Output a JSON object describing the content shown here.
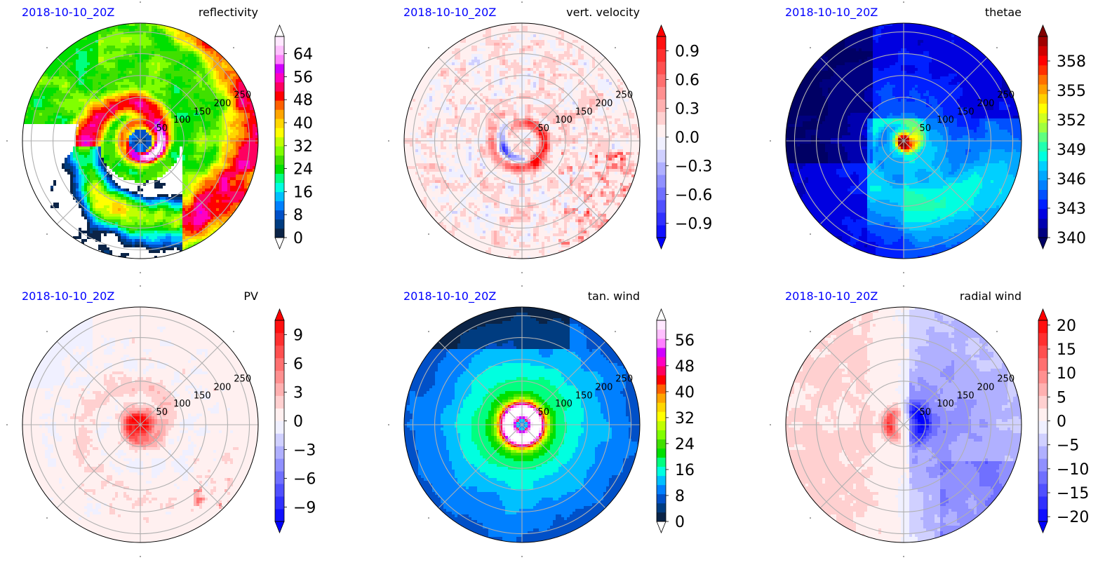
{
  "figure": {
    "timestamp_color": "#0000ff",
    "ring_label_color": "#000000",
    "grid_color": "#b0b0b0"
  },
  "chart_data": [
    {
      "type": "heatmap",
      "projection": "polar",
      "timestamp": "2018-10-10_20Z",
      "title": "reflectivity",
      "radial_ticks": [
        50,
        100,
        150,
        200,
        250
      ],
      "radial_max": 270,
      "colorbar": {
        "min": 0,
        "max": 70,
        "ticks": [
          "0",
          "8",
          "16",
          "24",
          "32",
          "40",
          "48",
          "56",
          "64"
        ],
        "tick_values": [
          0,
          8,
          16,
          24,
          32,
          40,
          48,
          56,
          64
        ],
        "extend_low": true,
        "extend_high": true,
        "low_color": "#ffffff",
        "high_color": "#ffffff",
        "colors": [
          "#0b2447",
          "#003c80",
          "#0050c8",
          "#0080ff",
          "#00c0ff",
          "#00ffe0",
          "#00ff80",
          "#00e000",
          "#40e000",
          "#80ff00",
          "#c0ff00",
          "#ffff00",
          "#ffd700",
          "#ffa500",
          "#ff6000",
          "#ff0000",
          "#ff0060",
          "#ff00c0",
          "#d000ff",
          "#ff80ff",
          "#ffc0ff",
          "#ffe8ff"
        ]
      },
      "field": "reflectivity"
    },
    {
      "type": "heatmap",
      "projection": "polar",
      "timestamp": "2018-10-10_20Z",
      "title": "vert. velocity",
      "radial_ticks": [
        50,
        100,
        150,
        200,
        250
      ],
      "radial_max": 270,
      "colorbar": {
        "min": -1.05,
        "max": 1.05,
        "ticks": [
          "−0.9",
          "−0.6",
          "−0.3",
          "0.0",
          "0.3",
          "0.6",
          "0.9"
        ],
        "tick_values": [
          -0.9,
          -0.6,
          -0.3,
          0.0,
          0.3,
          0.6,
          0.9
        ],
        "extend_low": true,
        "extend_high": true,
        "low_color": "#0000ff",
        "high_color": "#ff0000",
        "colors": [
          "#1010ff",
          "#3030ff",
          "#5050ff",
          "#7070ff",
          "#9090ff",
          "#b0b0ff",
          "#d0d0ff",
          "#f0f0ff",
          "#fff0f0",
          "#ffd0d0",
          "#ffb0b0",
          "#ff9090",
          "#ff7070",
          "#ff5050",
          "#ff3030",
          "#ff1010"
        ]
      },
      "field": "wvel"
    },
    {
      "type": "heatmap",
      "projection": "polar",
      "timestamp": "2018-10-10_20Z",
      "title": "thetae",
      "radial_ticks": [
        50,
        100,
        150,
        200,
        250
      ],
      "radial_max": 270,
      "colorbar": {
        "min": 340,
        "max": 360.5,
        "ticks": [
          "340",
          "343",
          "346",
          "349",
          "352",
          "355",
          "358"
        ],
        "tick_values": [
          340,
          343,
          346,
          349,
          352,
          355,
          358
        ],
        "extend_low": true,
        "extend_high": true,
        "low_color": "#000064",
        "high_color": "#800000",
        "colors": [
          "#000080",
          "#0000b0",
          "#0000e0",
          "#0020ff",
          "#0050ff",
          "#0080ff",
          "#00a8ff",
          "#00d0ff",
          "#00ffe0",
          "#20ffb0",
          "#60ff80",
          "#a0ff40",
          "#d0ff20",
          "#ffff00",
          "#ffd000",
          "#ffa000",
          "#ff7000",
          "#ff3000",
          "#ff0000",
          "#d00000",
          "#a00000"
        ]
      },
      "field": "thetae"
    },
    {
      "type": "heatmap",
      "projection": "polar",
      "timestamp": "2018-10-10_20Z",
      "title": "PV",
      "radial_ticks": [
        50,
        100,
        150,
        200,
        250
      ],
      "radial_max": 270,
      "colorbar": {
        "min": -10.5,
        "max": 10.5,
        "ticks": [
          "−9",
          "−6",
          "−3",
          "0",
          "3",
          "6",
          "9"
        ],
        "tick_values": [
          -9,
          -6,
          -3,
          0,
          3,
          6,
          9
        ],
        "extend_low": true,
        "extend_high": true,
        "low_color": "#0000ff",
        "high_color": "#ff0000",
        "colors": [
          "#1010ff",
          "#3030ff",
          "#5050ff",
          "#7070ff",
          "#9090ff",
          "#b0b0ff",
          "#d0d0ff",
          "#f0f0ff",
          "#fff0f0",
          "#ffd0d0",
          "#ffb0b0",
          "#ff9090",
          "#ff7070",
          "#ff5050",
          "#ff3030",
          "#ff1010"
        ]
      },
      "field": "pv"
    },
    {
      "type": "heatmap",
      "projection": "polar",
      "timestamp": "2018-10-10_20Z",
      "title": "tan. wind",
      "radial_ticks": [
        50,
        100,
        150,
        200,
        250
      ],
      "radial_max": 270,
      "colorbar": {
        "min": 0,
        "max": 62,
        "ticks": [
          "0",
          "8",
          "16",
          "24",
          "32",
          "40",
          "48",
          "56"
        ],
        "tick_values": [
          0,
          8,
          16,
          24,
          32,
          40,
          48,
          56
        ],
        "extend_low": true,
        "extend_high": true,
        "low_color": "#ffffff",
        "high_color": "#ffffff",
        "colors": [
          "#0b2447",
          "#003c80",
          "#0050c8",
          "#0080ff",
          "#00c0ff",
          "#00ffe0",
          "#00ff80",
          "#00e000",
          "#40e000",
          "#80ff00",
          "#c0ff00",
          "#ffff00",
          "#ffd700",
          "#ffa500",
          "#ff6000",
          "#ff0000",
          "#ff0060",
          "#ff00c0",
          "#d000ff",
          "#ff80ff",
          "#ffc0ff",
          "#ffe8ff"
        ]
      },
      "field": "tanwind"
    },
    {
      "type": "heatmap",
      "projection": "polar",
      "timestamp": "2018-10-10_20Z",
      "title": "radial wind",
      "radial_ticks": [
        50,
        100,
        150,
        200,
        250
      ],
      "radial_max": 270,
      "colorbar": {
        "min": -21,
        "max": 21,
        "ticks": [
          "−20",
          "−15",
          "−10",
          "−5",
          "0",
          "5",
          "10",
          "15",
          "20"
        ],
        "tick_values": [
          -20,
          -15,
          -10,
          -5,
          0,
          5,
          10,
          15,
          20
        ],
        "extend_low": true,
        "extend_high": true,
        "low_color": "#0000ff",
        "high_color": "#ff0000",
        "colors": [
          "#1010ff",
          "#3030ff",
          "#5050ff",
          "#7070ff",
          "#9090ff",
          "#b0b0ff",
          "#d0d0ff",
          "#f0f0ff",
          "#fff0f0",
          "#ffd0d0",
          "#ffb0b0",
          "#ff9090",
          "#ff7070",
          "#ff5050",
          "#ff3030",
          "#ff1010"
        ]
      },
      "field": "radwind"
    }
  ]
}
